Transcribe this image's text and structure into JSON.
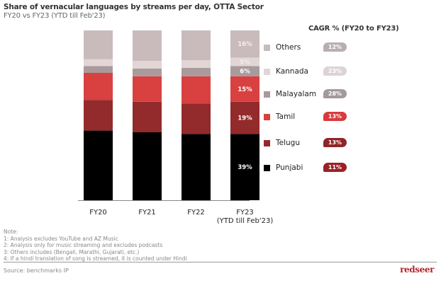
{
  "header": {
    "title": "Share of vernacular languages by streams per day, OTTA Sector",
    "subtitle": "FY20 vs FY23 (YTD till Feb'23)"
  },
  "chart_data": {
    "type": "bar",
    "stacked": true,
    "normalized_to_percent": true,
    "title": "Share of vernacular languages by streams per day, OTTA Sector",
    "subtitle": "FY20 vs FY23 (YTD till Feb'23)",
    "categories": [
      "FY20",
      "FY21",
      "FY22",
      "FY23\n(YTD till Feb'23)"
    ],
    "category_labels": [
      [
        "FY20"
      ],
      [
        "FY21"
      ],
      [
        "FY22"
      ],
      [
        "FY23",
        "(YTD till Feb'23)"
      ]
    ],
    "xlabel": "",
    "ylabel": "",
    "ylim": [
      0,
      100
    ],
    "grid": false,
    "legend_position": "right",
    "series": [
      {
        "name": "Punjabi",
        "color": "#000000",
        "values": [
          41,
          40,
          39,
          39
        ]
      },
      {
        "name": "Telugu",
        "color": "#932a2b",
        "values": [
          18,
          18,
          18,
          19
        ]
      },
      {
        "name": "Tamil",
        "color": "#d94040",
        "values": [
          16,
          15,
          16,
          15
        ]
      },
      {
        "name": "Malayalam",
        "color": "#a99a9c",
        "values": [
          4,
          4.5,
          5,
          6
        ]
      },
      {
        "name": "Kannada",
        "color": "#e1d5d6",
        "values": [
          4,
          4.5,
          4.5,
          5
        ]
      },
      {
        "name": "Others",
        "color": "#c9bbbc",
        "values": [
          17,
          18,
          17.5,
          16
        ]
      }
    ],
    "data_labels_last_bar": {
      "Punjabi": "39%",
      "Telugu": "19%",
      "Tamil": "15%",
      "Malayalam": "6%",
      "Kannada": "5%",
      "Others": "16%"
    },
    "cagr": {
      "title": "CAGR % (FY20 to FY23)",
      "values": [
        {
          "name": "Others",
          "label": "12%",
          "color": "#b9aeaf"
        },
        {
          "name": "Kannada",
          "label": "23%",
          "color": "#dcd3d4"
        },
        {
          "name": "Malayalam",
          "label": "28%",
          "color": "#a3999a"
        },
        {
          "name": "Tamil",
          "label": "13%",
          "color": "#d83a3d"
        },
        {
          "name": "Telugu",
          "label": "13%",
          "color": "#8f2528"
        },
        {
          "name": "Punjabi",
          "label": "11%",
          "color": "#9a2127"
        }
      ]
    }
  },
  "legend": [
    {
      "label": "Others",
      "color": "#c9bbbc"
    },
    {
      "label": "Kannada",
      "color": "#e1d5d6"
    },
    {
      "label": "Malayalam",
      "color": "#a99a9c"
    },
    {
      "label": "Tamil",
      "color": "#d94040"
    },
    {
      "label": "Telugu",
      "color": "#932a2b"
    },
    {
      "label": "Punjabi",
      "color": "#000000"
    }
  ],
  "notes": {
    "heading": "Note:",
    "lines": [
      "1:  Analysis excludes YouTube and AZ Music",
      "2:  Analysis only for music streaming and excludes podcasts",
      "3:  Others includes (Bengali, Marathi, Gujarati, etc.)",
      "4:  If a hindi translation of song is streamed, it is counted under Hindi"
    ]
  },
  "footer": {
    "source": "Source: benchmarks IP",
    "logo": "redseer"
  }
}
